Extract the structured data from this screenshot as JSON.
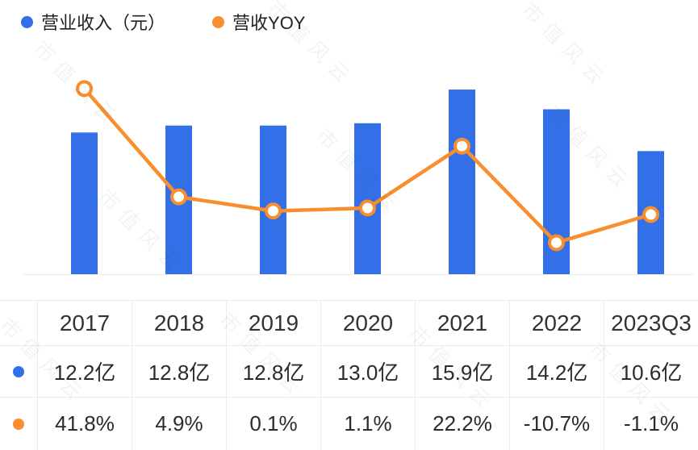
{
  "legend": {
    "revenue": "营业收入（元）",
    "yoy": "营收YOY"
  },
  "watermark": "市值风云",
  "chart_data": {
    "type": "combo_bar_line",
    "categories": [
      "2017",
      "2018",
      "2019",
      "2020",
      "2021",
      "2022",
      "2023Q3"
    ],
    "series": [
      {
        "name": "营业收入（元）",
        "type": "bar",
        "unit": "亿",
        "values": [
          12.2,
          12.8,
          12.8,
          13.0,
          15.9,
          14.2,
          10.6
        ]
      },
      {
        "name": "营收YOY",
        "type": "line",
        "unit": "%",
        "values": [
          41.8,
          4.9,
          0.1,
          1.1,
          22.2,
          -10.7,
          -1.1
        ]
      }
    ],
    "title": "",
    "xlabel": "",
    "ylabel": "",
    "legend_position": "top-left",
    "grid": false
  },
  "table": {
    "years": [
      "2017",
      "2018",
      "2019",
      "2020",
      "2021",
      "2022",
      "2023Q3"
    ],
    "revenue": [
      "12.2亿",
      "12.8亿",
      "12.8亿",
      "13.0亿",
      "15.9亿",
      "14.2亿",
      "10.6亿"
    ],
    "yoy": [
      "41.8%",
      "4.9%",
      "0.1%",
      "1.1%",
      "22.2%",
      "-10.7%",
      "-1.1%"
    ]
  },
  "colors": {
    "bar": "#3370E8",
    "line": "#F98E2E",
    "grid": "#ECECEC",
    "text": "#2B2B2B",
    "marker_fill": "#FFFFFF"
  }
}
